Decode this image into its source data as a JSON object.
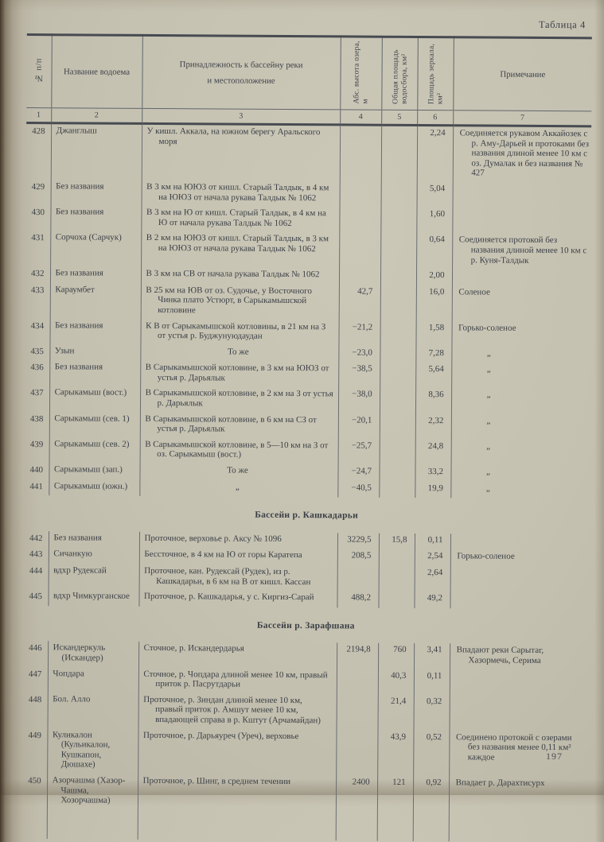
{
  "page": {
    "table_label": "Таблица 4",
    "page_number": "197"
  },
  "table": {
    "headers": {
      "col1": "№ п/п",
      "col2": "Название водоема",
      "col3_line1": "Принадлежность к бассейну реки",
      "col3_line2": "и местоположение",
      "col4": "Абс. высота озера, м",
      "col5": "Общая площадь водосбора, км²",
      "col6": "Площадь зеркала, км²",
      "col7": "Примечание",
      "numbers": [
        "1",
        "2",
        "3",
        "4",
        "5",
        "6",
        "7"
      ]
    },
    "sections": [
      {
        "title": "",
        "rows": [
          {
            "num": "428",
            "name": "Джанглыш",
            "location": "У кишл. Аккала, на южном берегу Аральского моря",
            "height": "",
            "basin_area": "",
            "mirror_area": "2,24",
            "note": "Соединяется рукавом Аккайозек с р. Аму-Дарьей и протоками без названия длиной менее 10 км с оз. Думалак и без названия № 427"
          },
          {
            "num": "429",
            "name": "Без названия",
            "location": "В 3 км на ЮЮЗ от кишл. Старый Талдык, в 4 км на ЮЮЗ от начала рукава Талдык № 1062",
            "height": "",
            "basin_area": "",
            "mirror_area": "5,04",
            "note": ""
          },
          {
            "num": "430",
            "name": "Без названия",
            "location": "В 3 км на Ю от кишл. Старый Талдык, в 4 км на Ю от начала рукава Талдык № 1062",
            "height": "",
            "basin_area": "",
            "mirror_area": "1,60",
            "note": ""
          },
          {
            "num": "431",
            "name": "Сорчоха (Сарчук)",
            "location": "В 2 км на ЮЮЗ от кишл. Старый Талдык, в 3 км на ЮЮЗ от начала рукава Талдык № 1062",
            "height": "",
            "basin_area": "",
            "mirror_area": "0,64",
            "note": "Соединяется протокой без названия длиной менее 10 км с р. Куня-Талдык"
          },
          {
            "num": "432",
            "name": "Без названия",
            "location": "В 3 км на СВ от начала рукава Талдык № 1062",
            "height": "",
            "basin_area": "",
            "mirror_area": "2,00",
            "note": ""
          },
          {
            "num": "433",
            "name": "Караумбет",
            "location": "В 25 км на ЮВ от оз. Судочье, у Восточного Чинка плато Устюрт, в Сарыкамышской котловине",
            "height": "42,7",
            "basin_area": "",
            "mirror_area": "16,0",
            "note": "Соленое"
          },
          {
            "num": "434",
            "name": "Без названия",
            "location": "К В от Сарыкамышской котловины, в 21 км на З от устья р. Буджунуюдаудан",
            "height": "−21,2",
            "basin_area": "",
            "mirror_area": "1,58",
            "note": "Горько-соленое"
          },
          {
            "num": "435",
            "name": "Узын",
            "location": "То же",
            "height": "−23,0",
            "basin_area": "",
            "mirror_area": "7,28",
            "note": "„"
          },
          {
            "num": "436",
            "name": "Без названия",
            "location": "В Сарыкамышской котловине, в 3 км на ЮЮЗ от устья р. Дарьялык",
            "height": "−38,5",
            "basin_area": "",
            "mirror_area": "5,64",
            "note": "„"
          },
          {
            "num": "437",
            "name": "Сарыкамыш (вост.)",
            "location": "В Сарыкамышской котловине, в 2 км на З от устья р. Дарьялык",
            "height": "−38,0",
            "basin_area": "",
            "mirror_area": "8,36",
            "note": "„"
          },
          {
            "num": "438",
            "name": "Сарыкамыш (сев. 1)",
            "location": "В Сарыкамышской котловине, в 6 км на СЗ от устья р. Дарьялык",
            "height": "−20,1",
            "basin_area": "",
            "mirror_area": "2,32",
            "note": "„"
          },
          {
            "num": "439",
            "name": "Сарыкамыш (сев. 2)",
            "location": "В Сарыкамышской котловине, в 5—10 км на З от оз. Сарыкамыш (вост.)",
            "height": "−25,7",
            "basin_area": "",
            "mirror_area": "24,8",
            "note": "„"
          },
          {
            "num": "440",
            "name": "Сарыкамыш (зап.)",
            "location": "То же",
            "height": "−24,7",
            "basin_area": "",
            "mirror_area": "33,2",
            "note": "„"
          },
          {
            "num": "441",
            "name": "Сарыкамыш (южн.)",
            "location": "„",
            "height": "−40,5",
            "basin_area": "",
            "mirror_area": "19,9",
            "note": "„"
          }
        ]
      },
      {
        "title": "Бассейн р. Кашкадарьи",
        "rows": [
          {
            "num": "442",
            "name": "Без названия",
            "location": "Проточное, верховье р. Аксу № 1096",
            "height": "3229,5",
            "basin_area": "15,8",
            "mirror_area": "0,11",
            "note": ""
          },
          {
            "num": "443",
            "name": "Сичанкую",
            "location": "Бессточное, в 4 км на Ю от горы Каратепа",
            "height": "208,5",
            "basin_area": "",
            "mirror_area": "2,54",
            "note": "Горько-соленое"
          },
          {
            "num": "444",
            "name": "вдхр Рудексай",
            "location": "Проточное, кан. Рудексай (Рудек), из р. Кашкадарьи, в 6 км на В от кишл. Кассан",
            "height": "",
            "basin_area": "",
            "mirror_area": "2,64",
            "note": ""
          },
          {
            "num": "445",
            "name": "вдхр Чимкурганское",
            "location": "Проточное, р. Кашкадарья, у с. Киргиз-Сарай",
            "height": "488,2",
            "basin_area": "",
            "mirror_area": "49,2",
            "note": ""
          }
        ]
      },
      {
        "title": "Бассейн р. Зарафшана",
        "rows": [
          {
            "num": "446",
            "name": "Искандеркуль (Искандер)",
            "location": "Сточное, р. Искандердарья",
            "height": "2194,8",
            "basin_area": "760",
            "mirror_area": "3,41",
            "note": "Впадают реки Сарытаг, Хазормечь, Серима"
          },
          {
            "num": "447",
            "name": "Чопдара",
            "location": "Сточное, р. Чопдара длиной менее 10 км, правый приток р. Пасрутдарьи",
            "height": "",
            "basin_area": "40,3",
            "mirror_area": "0,11",
            "note": ""
          },
          {
            "num": "448",
            "name": "Бол. Алло",
            "location": "Проточное, р. Зиндан длиной менее 10 км, правый приток р. Амшут менее 10 км, впадающей справа в р. Кштут (Арчамайдан)",
            "height": "",
            "basin_area": "21,4",
            "mirror_area": "0,32",
            "note": ""
          },
          {
            "num": "449",
            "name": "Куликалон (Кульикалон, Кушкапон, Дюшахе)",
            "location": "Проточное, р. Дарьяуреч (Уреч), верховье",
            "height": "",
            "basin_area": "43,9",
            "mirror_area": "0,52",
            "note": "Соединено протокой с озерами без названия менее 0,11 км² каждое"
          },
          {
            "num": "450",
            "name": "Азорчашма (Хазор-Чашма, Хозорчашма)",
            "location": "Проточное, р. Шинг, в среднем течении",
            "height": "2400",
            "basin_area": "121",
            "mirror_area": "0,92",
            "note": "Впадает р. Дарахтисурх"
          }
        ]
      }
    ]
  }
}
